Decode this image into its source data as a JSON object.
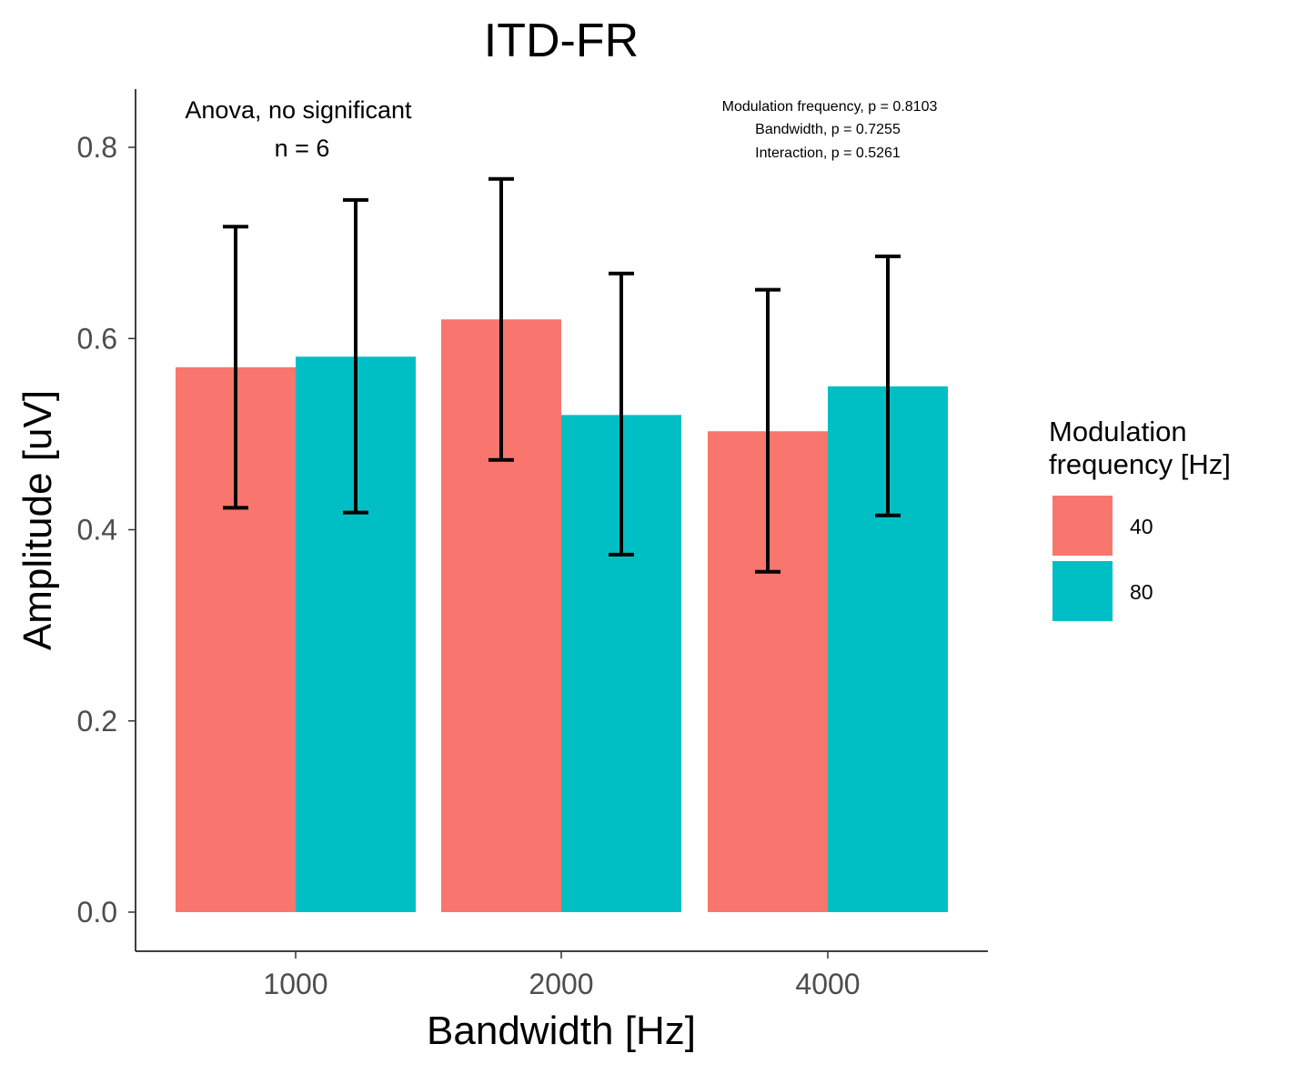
{
  "chart_data": {
    "type": "bar",
    "title": "ITD-FR",
    "xlabel": "Bandwidth [Hz]",
    "ylabel": "Amplitude [uV]",
    "categories": [
      "1000",
      "2000",
      "4000"
    ],
    "ylim": [
      -0.04,
      0.86
    ],
    "yticks": [
      0.0,
      0.2,
      0.4,
      0.6,
      0.8
    ],
    "ytick_labels": [
      "0.0",
      "0.2",
      "0.4",
      "0.6",
      "0.8"
    ],
    "series": [
      {
        "name": "40",
        "color": "#F8766D",
        "values": [
          0.57,
          0.62,
          0.503
        ],
        "error_low": [
          0.423,
          0.473,
          0.356
        ],
        "error_high": [
          0.717,
          0.767,
          0.651
        ]
      },
      {
        "name": "80",
        "color": "#00BFC4",
        "values": [
          0.581,
          0.52,
          0.55
        ],
        "error_low": [
          0.418,
          0.374,
          0.415
        ],
        "error_high": [
          0.745,
          0.668,
          0.686
        ]
      }
    ],
    "legend": {
      "title_lines": [
        "Modulation",
        "frequency [Hz]"
      ],
      "position": "right"
    },
    "annotations": {
      "test": "Anova, no significant",
      "n": "n = 6",
      "stats": [
        "Modulation frequency, p = 0.8103",
        "Bandwidth, p = 0.7255",
        "Interaction, p = 0.5261"
      ]
    },
    "grid": false
  }
}
